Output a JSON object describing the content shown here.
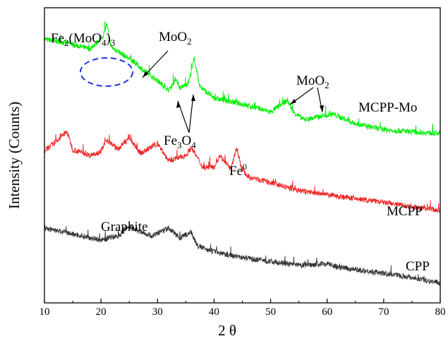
{
  "chart_data": {
    "type": "line",
    "xlabel": "2 θ",
    "ylabel": "Intensity (Counts)",
    "xlim": [
      10,
      80
    ],
    "x_ticks": [
      "10",
      "20",
      "30",
      "40",
      "50",
      "60",
      "70",
      "80"
    ],
    "y_ticks_labeled": false,
    "grid": false,
    "legend": "none (series labelled at right end of curves)",
    "series": [
      {
        "name": "MCPP-Mo",
        "color": "#00ee00",
        "points": [
          [
            10,
            0.84
          ],
          [
            14,
            0.82
          ],
          [
            18,
            0.79
          ],
          [
            19.5,
            0.83
          ],
          [
            20.5,
            0.86
          ],
          [
            21,
            0.92
          ],
          [
            21.8,
            0.8
          ],
          [
            23,
            0.78
          ],
          [
            26,
            0.72
          ],
          [
            28,
            0.67
          ],
          [
            30,
            0.63
          ],
          [
            32,
            0.58
          ],
          [
            33.3,
            0.64
          ],
          [
            34,
            0.59
          ],
          [
            35.5,
            0.62
          ],
          [
            36.5,
            0.74
          ],
          [
            37.5,
            0.6
          ],
          [
            40,
            0.54
          ],
          [
            45,
            0.51
          ],
          [
            50,
            0.47
          ],
          [
            53,
            0.53
          ],
          [
            54,
            0.47
          ],
          [
            56,
            0.43
          ],
          [
            59,
            0.45
          ],
          [
            61,
            0.46
          ],
          [
            65,
            0.41
          ],
          [
            70,
            0.38
          ],
          [
            75,
            0.37
          ],
          [
            80,
            0.36
          ]
        ]
      },
      {
        "name": "MCPP",
        "color": "#ee2222",
        "points": [
          [
            10,
            0.27
          ],
          [
            12,
            0.32
          ],
          [
            14,
            0.37
          ],
          [
            15,
            0.28
          ],
          [
            18,
            0.25
          ],
          [
            20,
            0.27
          ],
          [
            21,
            0.33
          ],
          [
            23,
            0.28
          ],
          [
            25,
            0.34
          ],
          [
            27,
            0.26
          ],
          [
            30,
            0.31
          ],
          [
            32,
            0.22
          ],
          [
            35,
            0.25
          ],
          [
            36,
            0.29
          ],
          [
            38,
            0.19
          ],
          [
            40,
            0.19
          ],
          [
            41,
            0.25
          ],
          [
            43,
            0.18
          ],
          [
            44,
            0.29
          ],
          [
            44.8,
            0.19
          ],
          [
            46,
            0.14
          ],
          [
            50,
            0.11
          ],
          [
            55,
            0.07
          ],
          [
            60,
            0.05
          ],
          [
            65,
            0.03
          ],
          [
            70,
            0.01
          ],
          [
            75,
            -0.01
          ],
          [
            80,
            -0.03
          ]
        ]
      },
      {
        "name": "CPP",
        "color": "#333333",
        "points": [
          [
            10,
            -0.12
          ],
          [
            15,
            -0.15
          ],
          [
            20,
            -0.18
          ],
          [
            23,
            -0.16
          ],
          [
            25,
            -0.11
          ],
          [
            27,
            -0.14
          ],
          [
            29,
            -0.16
          ],
          [
            32,
            -0.12
          ],
          [
            34,
            -0.17
          ],
          [
            36,
            -0.14
          ],
          [
            37,
            -0.21
          ],
          [
            40,
            -0.24
          ],
          [
            45,
            -0.27
          ],
          [
            50,
            -0.29
          ],
          [
            55,
            -0.31
          ],
          [
            60,
            -0.3
          ],
          [
            62,
            -0.32
          ],
          [
            65,
            -0.33
          ],
          [
            70,
            -0.35
          ],
          [
            75,
            -0.37
          ],
          [
            80,
            -0.4
          ]
        ]
      }
    ],
    "annotations": [
      {
        "text": "Fe2(MoO4)3"
      },
      {
        "text": "MoO2"
      },
      {
        "text": "Fe3O4"
      },
      {
        "text": "MoO2"
      },
      {
        "text": "Fe0"
      },
      {
        "text": "Graphite"
      }
    ],
    "highlight": {
      "shape": "dashed ellipse",
      "color": "#1f2fe0",
      "x_center": 20.5,
      "x_half_width": 4.5
    }
  }
}
